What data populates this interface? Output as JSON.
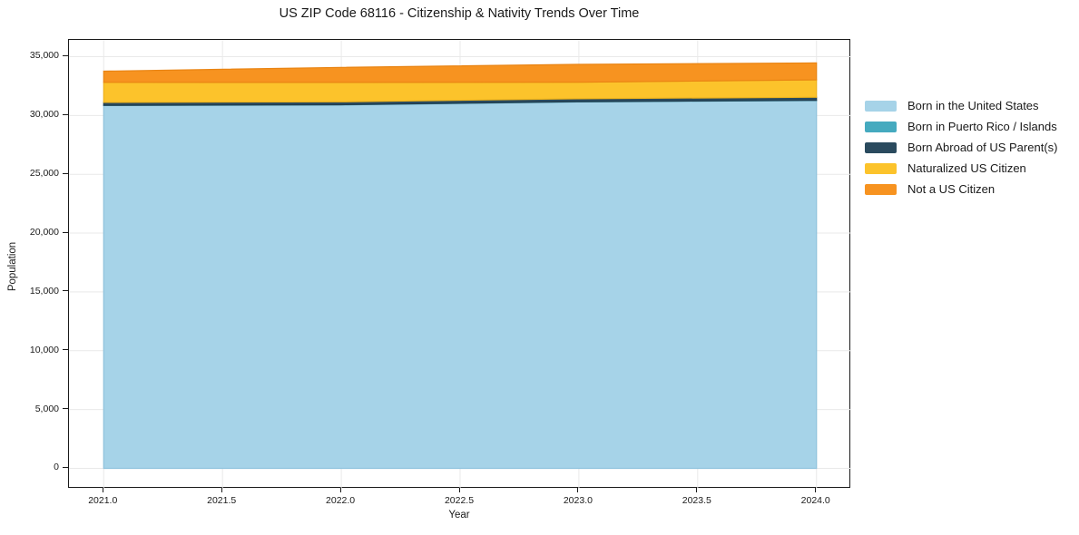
{
  "figure": {
    "background": "#ffffff"
  },
  "chart_data": {
    "type": "area",
    "stacked": true,
    "title": "US ZIP Code 68116 - Citizenship & Nativity Trends Over Time",
    "xlabel": "Year",
    "ylabel": "Population",
    "x": [
      2021,
      2022,
      2023,
      2024
    ],
    "series": [
      {
        "name": "Born in the United States",
        "color": "#a6d3e8",
        "edge": "#8fc3dd",
        "values": [
          30850,
          30900,
          31150,
          31270
        ]
      },
      {
        "name": "Born in Puerto Rico / Islands",
        "color": "#45aabf",
        "edge": "#3a96a9",
        "values": [
          15,
          15,
          20,
          20
        ]
      },
      {
        "name": "Born Abroad of US Parent(s)",
        "color": "#2a4a5e",
        "edge": "#223d4e",
        "values": [
          250,
          245,
          255,
          260
        ]
      },
      {
        "name": "Naturalized US Citizen",
        "color": "#fcc32b",
        "edge": "#eeb31c",
        "values": [
          1700,
          1650,
          1400,
          1480
        ]
      },
      {
        "name": "Not a US Citizen",
        "color": "#f79320",
        "edge": "#e98413",
        "values": [
          950,
          1280,
          1520,
          1440
        ]
      }
    ],
    "xticks": {
      "values": [
        2021.0,
        2021.5,
        2022.0,
        2022.5,
        2023.0,
        2023.5,
        2024.0
      ],
      "labels": [
        "2021.0",
        "2021.5",
        "2022.0",
        "2022.5",
        "2023.0",
        "2023.5",
        "2024.0"
      ]
    },
    "yticks": {
      "values": [
        0,
        5000,
        10000,
        15000,
        20000,
        25000,
        30000,
        35000
      ],
      "labels": [
        "0",
        "5,000",
        "10,000",
        "15,000",
        "20,000",
        "25,000",
        "30,000",
        "35,000"
      ]
    },
    "xlim": [
      2020.8538,
      2024.1462
    ],
    "ylim": [
      -1735,
      36425
    ],
    "grid": true,
    "legend_position": "right"
  },
  "colors": {
    "grid": "#e9e9e9",
    "spine": "#1a1a1a",
    "text": "#1a1a1a",
    "plot_background": "#ffffff"
  }
}
